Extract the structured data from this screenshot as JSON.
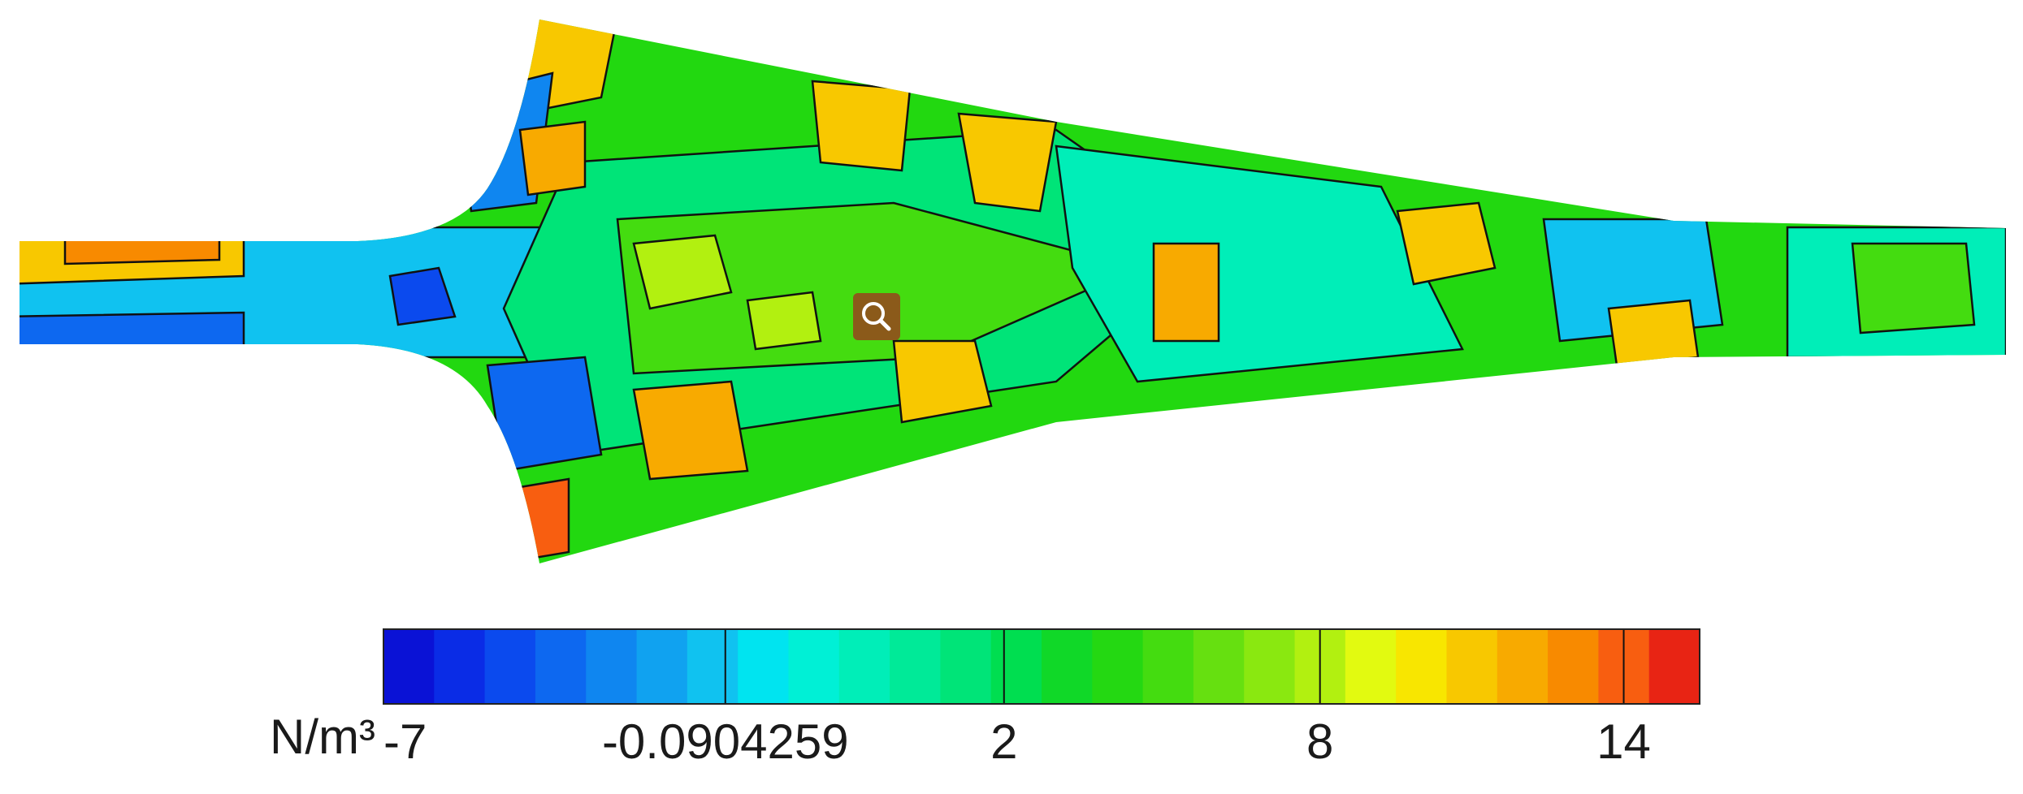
{
  "chart_data": {
    "type": "contour",
    "colorbar": {
      "label": "N/m³",
      "levels": [
        -7,
        -5.937,
        -4.874,
        -3.811,
        -2.748,
        -1.685,
        -0.622,
        0.084,
        0.432,
        0.781,
        1.129,
        1.477,
        1.826,
        2.5,
        3.5,
        4.5,
        5.5,
        6.5,
        7.5,
        8.5,
        9.5,
        10.5,
        11.5,
        12.5,
        13.5,
        14.5,
        15.5
      ],
      "colors": [
        "#0a12d6",
        "#0a2ce6",
        "#0b4aee",
        "#0d68f0",
        "#0f86f0",
        "#10a2f0",
        "#10c2f0",
        "#00e4f0",
        "#00f0d6",
        "#00eeb8",
        "#00ea98",
        "#00e478",
        "#00de50",
        "#10d828",
        "#24d812",
        "#44dc10",
        "#66e010",
        "#8ae810",
        "#b2f010",
        "#e2fa10",
        "#f8e600",
        "#f8c800",
        "#f8aa00",
        "#f88a00",
        "#f85e10",
        "#e82414"
      ],
      "ticks": [
        -7,
        -0.0904259,
        2,
        8,
        14
      ]
    }
  }
}
